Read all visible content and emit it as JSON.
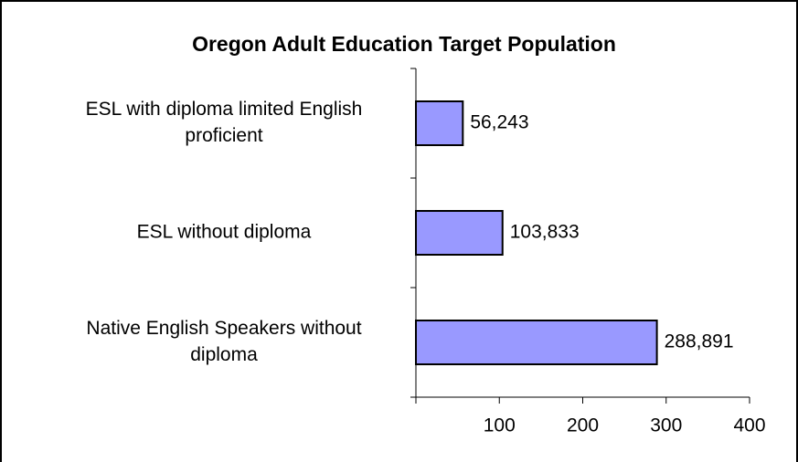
{
  "chart_data": {
    "type": "bar",
    "orientation": "horizontal",
    "title": "Oregon Adult Education Target Population",
    "categories": [
      [
        "ESL with diploma limited English",
        "proficient"
      ],
      [
        "ESL without diploma"
      ],
      [
        "Native English Speakers without",
        "diploma"
      ]
    ],
    "values": [
      56.243,
      103.833,
      288.891
    ],
    "value_labels": [
      "56,243",
      "103,833",
      "288,891"
    ],
    "color": "#9999ff",
    "xlim": [
      0,
      400
    ],
    "xticks": [
      100,
      200,
      300,
      400
    ]
  }
}
